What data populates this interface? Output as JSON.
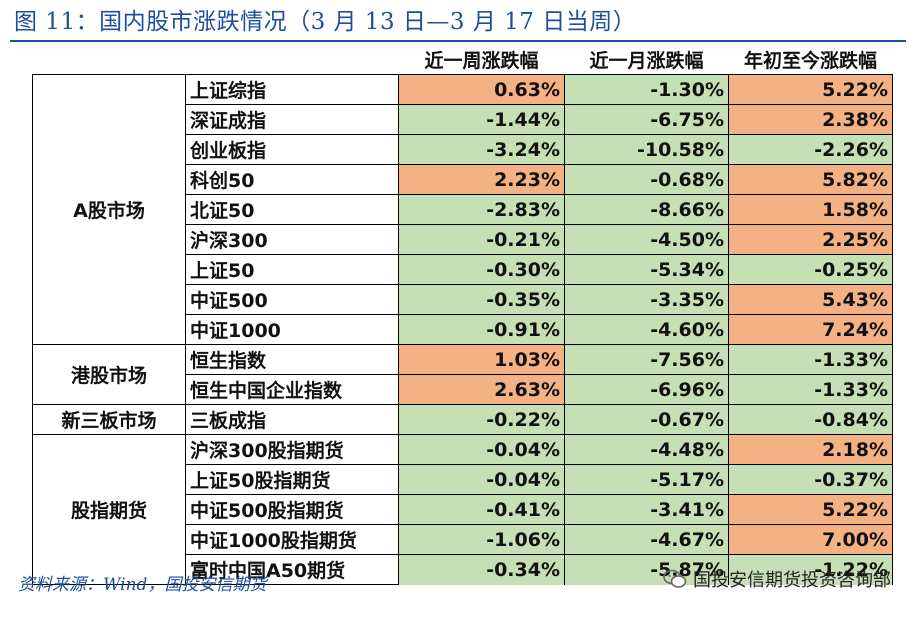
{
  "title": "图 11：国内股市涨跌情况（3 月 13 日—3 月 17 日当周）",
  "headers": [
    "近一周涨跌幅",
    "近一月涨跌幅",
    "年初至今涨跌幅"
  ],
  "groups": [
    {
      "market": "A股市场",
      "rows": [
        {
          "name": "上证综指",
          "values": [
            "0.63%",
            "-1.30%",
            "5.22%"
          ]
        },
        {
          "name": "深证成指",
          "values": [
            "-1.44%",
            "-6.75%",
            "2.38%"
          ]
        },
        {
          "name": "创业板指",
          "values": [
            "-3.24%",
            "-10.58%",
            "-2.26%"
          ]
        },
        {
          "name": "科创50",
          "values": [
            "2.23%",
            "-0.68%",
            "5.82%"
          ]
        },
        {
          "name": "北证50",
          "values": [
            "-2.83%",
            "-8.66%",
            "1.58%"
          ]
        },
        {
          "name": "沪深300",
          "values": [
            "-0.21%",
            "-4.50%",
            "2.25%"
          ]
        },
        {
          "name": "上证50",
          "values": [
            "-0.30%",
            "-5.34%",
            "-0.25%"
          ]
        },
        {
          "name": "中证500",
          "values": [
            "-0.35%",
            "-3.35%",
            "5.43%"
          ]
        },
        {
          "name": "中证1000",
          "values": [
            "-0.91%",
            "-4.60%",
            "7.24%"
          ]
        }
      ]
    },
    {
      "market": "港股市场",
      "rows": [
        {
          "name": "恒生指数",
          "values": [
            "1.03%",
            "-7.56%",
            "-1.33%"
          ]
        },
        {
          "name": "恒生中国企业指数",
          "values": [
            "2.63%",
            "-6.96%",
            "-1.33%"
          ]
        }
      ]
    },
    {
      "market": "新三板市场",
      "rows": [
        {
          "name": "三板成指",
          "values": [
            "-0.22%",
            "-0.67%",
            "-0.84%"
          ]
        }
      ]
    },
    {
      "market": "股指期货",
      "rows": [
        {
          "name": "沪深300股指期货",
          "values": [
            "-0.04%",
            "-4.48%",
            "2.18%"
          ]
        },
        {
          "name": "上证50股指期货",
          "values": [
            "-0.04%",
            "-5.17%",
            "-0.37%"
          ]
        },
        {
          "name": "中证500股指期货",
          "values": [
            "-0.41%",
            "-3.41%",
            "5.22%"
          ]
        },
        {
          "name": "中证1000股指期货",
          "values": [
            "-1.06%",
            "-4.67%",
            "7.00%"
          ]
        },
        {
          "name": "富时中国A50期货",
          "values": [
            "-0.34%",
            "-5.87%",
            "-1.22%"
          ]
        }
      ]
    }
  ],
  "source": "资料来源：Wind，国投安信期货",
  "watermark": "国投安信期货投资咨询部",
  "colors": {
    "positive": "#f4b183",
    "negative": "#c5e0b4",
    "title": "#1f4e9c"
  },
  "chart_data": {
    "type": "table",
    "title": "图 11：国内股市涨跌情况（3 月 13 日—3 月 17 日当周）",
    "columns": [
      "近一周涨跌幅",
      "近一月涨跌幅",
      "年初至今涨跌幅"
    ],
    "rows": [
      {
        "group": "A股市场",
        "name": "上证综指",
        "values": [
          0.63,
          -1.3,
          5.22
        ]
      },
      {
        "group": "A股市场",
        "name": "深证成指",
        "values": [
          -1.44,
          -6.75,
          2.38
        ]
      },
      {
        "group": "A股市场",
        "name": "创业板指",
        "values": [
          -3.24,
          -10.58,
          -2.26
        ]
      },
      {
        "group": "A股市场",
        "name": "科创50",
        "values": [
          2.23,
          -0.68,
          5.82
        ]
      },
      {
        "group": "A股市场",
        "name": "北证50",
        "values": [
          -2.83,
          -8.66,
          1.58
        ]
      },
      {
        "group": "A股市场",
        "name": "沪深300",
        "values": [
          -0.21,
          -4.5,
          2.25
        ]
      },
      {
        "group": "A股市场",
        "name": "上证50",
        "values": [
          -0.3,
          -5.34,
          -0.25
        ]
      },
      {
        "group": "A股市场",
        "name": "中证500",
        "values": [
          -0.35,
          -3.35,
          5.43
        ]
      },
      {
        "group": "A股市场",
        "name": "中证1000",
        "values": [
          -0.91,
          -4.6,
          7.24
        ]
      },
      {
        "group": "港股市场",
        "name": "恒生指数",
        "values": [
          1.03,
          -7.56,
          -1.33
        ]
      },
      {
        "group": "港股市场",
        "name": "恒生中国企业指数",
        "values": [
          2.63,
          -6.96,
          -1.33
        ]
      },
      {
        "group": "新三板市场",
        "name": "三板成指",
        "values": [
          -0.22,
          -0.67,
          -0.84
        ]
      },
      {
        "group": "股指期货",
        "name": "沪深300股指期货",
        "values": [
          -0.04,
          -4.48,
          2.18
        ]
      },
      {
        "group": "股指期货",
        "name": "上证50股指期货",
        "values": [
          -0.04,
          -5.17,
          -0.37
        ]
      },
      {
        "group": "股指期货",
        "name": "中证500股指期货",
        "values": [
          -0.41,
          -3.41,
          5.22
        ]
      },
      {
        "group": "股指期货",
        "name": "中证1000股指期货",
        "values": [
          -1.06,
          -4.67,
          7.0
        ]
      },
      {
        "group": "股指期货",
        "name": "富时中国A50期货",
        "values": [
          -0.34,
          -5.87,
          -1.22
        ]
      }
    ]
  }
}
